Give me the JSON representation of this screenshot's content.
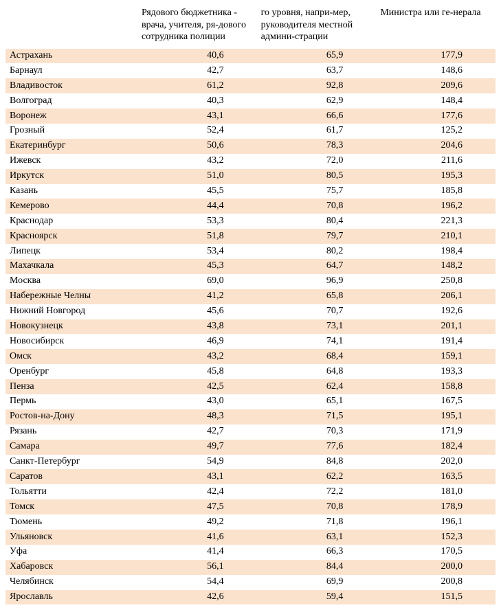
{
  "table": {
    "headers": {
      "city": "",
      "col1": "Рядового бюджетника - врача, учителя, ря-дового сотрудника полиции",
      "col2": "го уровня, напри-мер, руководителя местной админи-страции",
      "col3": "Министра или ге-нерала"
    },
    "colors": {
      "stripe_odd": "#fbe2cd",
      "stripe_even": "#ffffff",
      "text": "#000000",
      "background": "#ffffff"
    },
    "font": {
      "family": "Times New Roman",
      "size_pt": 11
    },
    "column_align": [
      "left",
      "right",
      "right",
      "right"
    ],
    "rows": [
      {
        "city": "Астрахань",
        "v1": "40,6",
        "v2": "65,9",
        "v3": "177,9"
      },
      {
        "city": "Барнаул",
        "v1": "42,7",
        "v2": "63,7",
        "v3": "148,6"
      },
      {
        "city": "Владивосток",
        "v1": "61,2",
        "v2": "92,8",
        "v3": "209,6"
      },
      {
        "city": "Волгоград",
        "v1": "40,3",
        "v2": "62,9",
        "v3": "148,4"
      },
      {
        "city": "Воронеж",
        "v1": "43,1",
        "v2": "66,6",
        "v3": "177,6"
      },
      {
        "city": "Грозный",
        "v1": "52,4",
        "v2": "61,7",
        "v3": "125,2"
      },
      {
        "city": "Екатеринбург",
        "v1": "50,6",
        "v2": "78,3",
        "v3": "204,6"
      },
      {
        "city": "Ижевск",
        "v1": "43,2",
        "v2": "72,0",
        "v3": "211,6"
      },
      {
        "city": "Иркутск",
        "v1": "51,0",
        "v2": "80,5",
        "v3": "195,3"
      },
      {
        "city": "Казань",
        "v1": "45,5",
        "v2": "75,7",
        "v3": "185,8"
      },
      {
        "city": "Кемерово",
        "v1": "44,4",
        "v2": "70,8",
        "v3": "196,2"
      },
      {
        "city": "Краснодар",
        "v1": "53,3",
        "v2": "80,4",
        "v3": "221,3"
      },
      {
        "city": "Красноярск",
        "v1": "51,8",
        "v2": "79,7",
        "v3": "210,1"
      },
      {
        "city": "Липецк",
        "v1": "53,4",
        "v2": "80,2",
        "v3": "198,4"
      },
      {
        "city": "Махачкала",
        "v1": "45,3",
        "v2": "64,7",
        "v3": "148,2"
      },
      {
        "city": "Москва",
        "v1": "69,0",
        "v2": "96,9",
        "v3": "250,8"
      },
      {
        "city": "Набережные Челны",
        "v1": "41,2",
        "v2": "65,8",
        "v3": "206,1"
      },
      {
        "city": "Нижний Новгород",
        "v1": "45,6",
        "v2": "70,7",
        "v3": "192,6"
      },
      {
        "city": "Новокузнецк",
        "v1": "43,8",
        "v2": "73,1",
        "v3": "201,1"
      },
      {
        "city": "Новосибирск",
        "v1": "46,9",
        "v2": "74,1",
        "v3": "191,4"
      },
      {
        "city": "Омск",
        "v1": "43,2",
        "v2": "68,4",
        "v3": "159,1"
      },
      {
        "city": "Оренбург",
        "v1": "45,8",
        "v2": "64,8",
        "v3": "193,3"
      },
      {
        "city": "Пенза",
        "v1": "42,5",
        "v2": "62,4",
        "v3": "158,8"
      },
      {
        "city": "Пермь",
        "v1": "43,0",
        "v2": "65,1",
        "v3": "167,5"
      },
      {
        "city": "Ростов-на-Дону",
        "v1": "48,3",
        "v2": "71,5",
        "v3": "195,1"
      },
      {
        "city": "Рязань",
        "v1": "42,7",
        "v2": "70,3",
        "v3": "171,9"
      },
      {
        "city": "Самара",
        "v1": "49,7",
        "v2": "77,6",
        "v3": "182,4"
      },
      {
        "city": "Санкт-Петербург",
        "v1": "54,9",
        "v2": "84,8",
        "v3": "202,0"
      },
      {
        "city": "Саратов",
        "v1": "43,1",
        "v2": "62,2",
        "v3": "163,5"
      },
      {
        "city": "Тольятти",
        "v1": "42,4",
        "v2": "72,2",
        "v3": "181,0"
      },
      {
        "city": "Томск",
        "v1": "47,5",
        "v2": "70,8",
        "v3": "178,9"
      },
      {
        "city": "Тюмень",
        "v1": "49,2",
        "v2": "71,8",
        "v3": "196,1"
      },
      {
        "city": "Ульяновск",
        "v1": "41,6",
        "v2": "63,1",
        "v3": "152,3"
      },
      {
        "city": "Уфа",
        "v1": "41,4",
        "v2": "66,3",
        "v3": "170,5"
      },
      {
        "city": "Хабаровск",
        "v1": "56,1",
        "v2": "84,4",
        "v3": "200,0"
      },
      {
        "city": "Челябинск",
        "v1": "54,4",
        "v2": "69,9",
        "v3": "200,8"
      },
      {
        "city": "Ярославль",
        "v1": "42,6",
        "v2": "59,4",
        "v3": "151,5"
      }
    ]
  }
}
